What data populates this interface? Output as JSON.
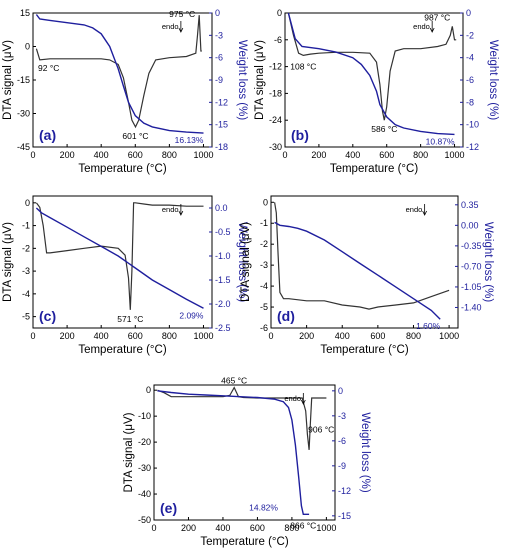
{
  "chart_data": [
    {
      "type": "line",
      "panel_label": "(a)",
      "xlabel": "Temperature (°C)",
      "ylabel_left": "DTA signal (μV)",
      "ylabel_right": "Weight loss (%)",
      "xlim": [
        0,
        1050
      ],
      "xticks": [
        0,
        200,
        400,
        600,
        800,
        1000
      ],
      "ylim_left": [
        -45,
        15
      ],
      "yticks_left": [
        -45,
        -30,
        -15,
        0,
        15
      ],
      "ylim_right": [
        -18,
        0
      ],
      "yticks_right": [
        -18,
        -15,
        -12,
        -9,
        -6,
        -3,
        0
      ],
      "endo_label": "endo",
      "series": [
        {
          "axis": "left",
          "color": "#333333",
          "x": [
            20,
            40,
            100,
            200,
            300,
            400,
            450,
            500,
            530,
            560,
            580,
            601,
            620,
            650,
            680,
            720,
            800,
            900,
            955,
            965,
            975,
            985,
            990
          ],
          "y": [
            -1,
            -6,
            -5.5,
            -5.5,
            -5.5,
            -5.5,
            -6,
            -8,
            -14,
            -25,
            -33,
            -36,
            -33,
            -22,
            -12,
            -6,
            -5,
            -4.5,
            -3,
            5,
            14,
            -2,
            -2
          ]
        },
        {
          "axis": "right",
          "color": "#1f1f9e",
          "x": [
            20,
            40,
            100,
            200,
            300,
            350,
            400,
            450,
            500,
            530,
            560,
            600,
            650,
            700,
            800,
            900,
            1000
          ],
          "y": [
            -0.2,
            -0.8,
            -1.0,
            -1.3,
            -1.6,
            -2.0,
            -2.8,
            -4.5,
            -7.5,
            -9.8,
            -12.0,
            -13.8,
            -14.8,
            -15.3,
            -15.8,
            -16.0,
            -16.13
          ]
        }
      ],
      "annotations": [
        {
          "text": "92 °C",
          "x": 92,
          "y": -5.5
        },
        {
          "text": "601 °C",
          "x": 601,
          "y": -36
        },
        {
          "text": "975 °C",
          "x": 975,
          "y": 14
        },
        {
          "text": "16.13%",
          "x": 1000,
          "y_right": -16.13
        }
      ]
    },
    {
      "type": "line",
      "panel_label": "(b)",
      "xlabel": "Temperature (°C)",
      "ylabel_left": "DTA signal (μV)",
      "ylabel_right": "Weight loss (%)",
      "xlim": [
        0,
        1050
      ],
      "xticks": [
        0,
        200,
        400,
        600,
        800,
        1000
      ],
      "ylim_left": [
        -30,
        0
      ],
      "yticks_left": [
        -30,
        -24,
        -18,
        -12,
        -6,
        0
      ],
      "ylim_right": [
        -12,
        0
      ],
      "yticks_right": [
        -12,
        -10,
        -8,
        -6,
        -4,
        -2,
        0
      ],
      "endo_label": "endo",
      "series": [
        {
          "axis": "left",
          "color": "#333333",
          "x": [
            20,
            50,
            80,
            108,
            150,
            200,
            300,
            400,
            500,
            540,
            560,
            575,
            586,
            600,
            620,
            650,
            700,
            800,
            900,
            950,
            975,
            987,
            1000,
            1010
          ],
          "y": [
            0,
            -5,
            -9,
            -9.5,
            -9.2,
            -9,
            -8.8,
            -8.8,
            -9,
            -11,
            -16,
            -22,
            -24,
            -21,
            -13,
            -8.5,
            -8,
            -8,
            -7.5,
            -7,
            -5,
            -3,
            -6,
            -6
          ]
        },
        {
          "axis": "right",
          "color": "#1f1f9e",
          "x": [
            20,
            60,
            100,
            150,
            200,
            300,
            400,
            450,
            500,
            540,
            560,
            600,
            650,
            700,
            800,
            900,
            1000
          ],
          "y": [
            0,
            -2.3,
            -3.0,
            -3.1,
            -3.2,
            -3.5,
            -4.0,
            -4.6,
            -5.6,
            -7.0,
            -8.2,
            -9.3,
            -10.0,
            -10.3,
            -10.6,
            -10.8,
            -10.87
          ]
        }
      ],
      "annotations": [
        {
          "text": "108 °C",
          "x": 108,
          "y": -9.5
        },
        {
          "text": "586 °C",
          "x": 586,
          "y": -24
        },
        {
          "text": "987 °C",
          "x": 987,
          "y": -3
        },
        {
          "text": "10.87%",
          "x": 1000,
          "y_right": -10.87
        }
      ]
    },
    {
      "type": "line",
      "panel_label": "(c)",
      "xlabel": "Temperature (°C)",
      "ylabel_left": "DTA signal (μV)",
      "ylabel_right": "Weight loss (%)",
      "xlim": [
        0,
        1050
      ],
      "xticks": [
        0,
        200,
        400,
        600,
        800,
        1000
      ],
      "ylim_left": [
        -5.5,
        0.3
      ],
      "yticks_left": [
        -5,
        -4,
        -3,
        -2,
        -1,
        0
      ],
      "ylim_right": [
        -2.5,
        0.25
      ],
      "yticks_right": [
        -2.5,
        -2.0,
        -1.5,
        -1.0,
        -0.5,
        0.0
      ],
      "endo_label": "endo",
      "series": [
        {
          "axis": "left",
          "color": "#333333",
          "x": [
            20,
            40,
            60,
            80,
            100,
            200,
            300,
            400,
            500,
            540,
            560,
            571,
            580,
            590,
            600,
            650,
            700,
            800,
            900,
            1000
          ],
          "y": [
            0,
            -0.2,
            -1.0,
            -2.2,
            -2.2,
            -2.1,
            -2.0,
            -1.9,
            -2.0,
            -2.3,
            -3.3,
            -4.7,
            -3.0,
            0,
            0,
            -0.05,
            -0.1,
            -0.1,
            -0.15,
            -0.15
          ]
        },
        {
          "axis": "right",
          "color": "#1f1f9e",
          "x": [
            20,
            50,
            100,
            200,
            300,
            400,
            500,
            600,
            700,
            800,
            900,
            1000
          ],
          "y": [
            0,
            -0.1,
            -0.2,
            -0.4,
            -0.6,
            -0.8,
            -1.0,
            -1.25,
            -1.5,
            -1.7,
            -1.9,
            -2.09
          ]
        }
      ],
      "annotations": [
        {
          "text": "571 °C",
          "x": 571,
          "y": -4.7
        },
        {
          "text": "2.09%",
          "x": 1000,
          "y_right": -2.09
        }
      ]
    },
    {
      "type": "line",
      "panel_label": "(d)",
      "xlabel": "Temperature (°C)",
      "ylabel_left": "DTA signal (μV)",
      "ylabel_right": "Weight loss (%)",
      "xlim": [
        0,
        1050
      ],
      "xticks": [
        0,
        200,
        400,
        600,
        800,
        1000
      ],
      "ylim_left": [
        -6,
        0.3
      ],
      "yticks_left": [
        -6,
        -5,
        -4,
        -3,
        -2,
        -1,
        0
      ],
      "ylim_right": [
        -1.75,
        0.5
      ],
      "yticks_right": [
        -1.4,
        -1.05,
        -0.7,
        -0.35,
        0.0,
        0.35
      ],
      "endo_label": "endo",
      "series": [
        {
          "axis": "left",
          "color": "#333333",
          "x": [
            20,
            30,
            40,
            50,
            70,
            100,
            200,
            300,
            400,
            500,
            550,
            600,
            700,
            800,
            900,
            1000
          ],
          "y": [
            0,
            -0.5,
            -2.5,
            -4.3,
            -4.6,
            -4.6,
            -4.7,
            -4.7,
            -4.9,
            -5.0,
            -5.1,
            -5.0,
            -4.9,
            -4.8,
            -4.5,
            -4.2
          ]
        },
        {
          "axis": "right",
          "color": "#1f1f9e",
          "x": [
            20,
            50,
            100,
            150,
            200,
            300,
            400,
            500,
            600,
            700,
            800,
            900,
            950
          ],
          "y": [
            0.05,
            0.0,
            -0.02,
            -0.05,
            -0.1,
            -0.25,
            -0.45,
            -0.65,
            -0.85,
            -1.05,
            -1.25,
            -1.45,
            -1.6
          ]
        }
      ],
      "annotations": [
        {
          "text": "1.60%",
          "x": 950,
          "y_right": -1.6
        }
      ]
    },
    {
      "type": "line",
      "panel_label": "(e)",
      "xlabel": "Temperature (°C)",
      "ylabel_left": "DTA signal (μV)",
      "ylabel_right": "Weight loss (%)",
      "xlim": [
        0,
        1050
      ],
      "xticks": [
        0,
        200,
        400,
        600,
        800,
        1000
      ],
      "ylim_left": [
        -50,
        2
      ],
      "yticks_left": [
        -50,
        -40,
        -30,
        -20,
        -10,
        0
      ],
      "ylim_right": [
        -15.5,
        0.7
      ],
      "yticks_right": [
        -15,
        -12,
        -9,
        -6,
        -3,
        0
      ],
      "endo_label": "endo",
      "series": [
        {
          "axis": "left",
          "color": "#333333",
          "x": [
            20,
            60,
            100,
            200,
            300,
            400,
            440,
            465,
            490,
            520,
            600,
            700,
            800,
            860,
            880,
            890,
            900,
            906,
            915,
            930,
            1000
          ],
          "y": [
            0,
            -1,
            -2.5,
            -2.5,
            -2.5,
            -2.5,
            -2,
            1,
            -2.5,
            -2.8,
            -3,
            -3,
            -3,
            -3,
            -8,
            -17,
            -23,
            -14,
            -3,
            -3,
            -3
          ]
        },
        {
          "axis": "right",
          "color": "#1f1f9e",
          "x": [
            20,
            100,
            200,
            300,
            400,
            500,
            600,
            700,
            750,
            780,
            800,
            820,
            840,
            855,
            866,
            880,
            900
          ],
          "y": [
            0,
            -0.2,
            -0.4,
            -0.5,
            -0.6,
            -0.7,
            -0.8,
            -1.0,
            -1.3,
            -2.0,
            -3.5,
            -6.5,
            -10.5,
            -13.8,
            -14.82,
            -14.82,
            -14.82
          ]
        }
      ],
      "annotations": [
        {
          "text": "465 °C",
          "x": 465,
          "y": 1
        },
        {
          "text": "906 °C",
          "x": 906,
          "y": -14
        },
        {
          "text": "866 °C",
          "x": 866,
          "y_right": -14.82
        },
        {
          "text": "14.82%",
          "x": 900,
          "y_right": -14.82
        }
      ]
    }
  ]
}
